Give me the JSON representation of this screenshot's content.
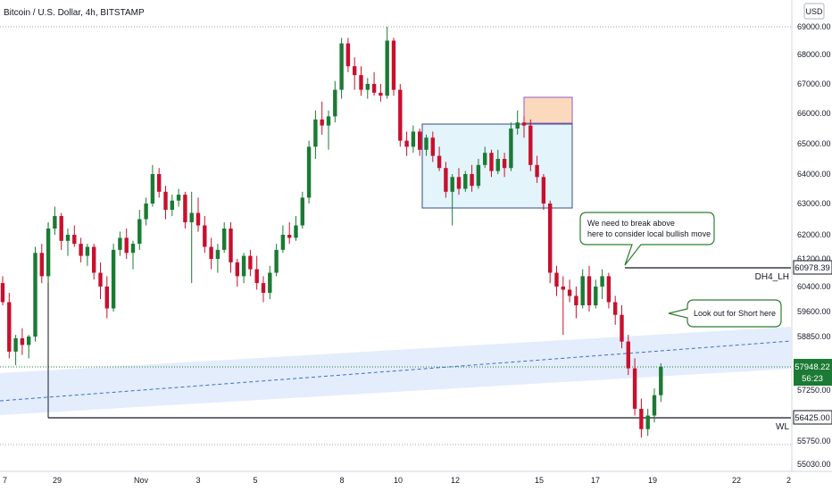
{
  "chart_data": {
    "type": "candlestick",
    "title": "Bitcoin / U.S. Dollar, 4h, BITSTAMP",
    "currency_badge": "USD",
    "y_ticks": [
      "69000.00",
      "68000.00",
      "67000.00",
      "66000.00",
      "65000.00",
      "64000.00",
      "63000.00",
      "62000.00",
      "61200.00",
      "60400.00",
      "59600.00",
      "58850.00",
      "57250.00",
      "55750.00",
      "55030.00"
    ],
    "x_ticks": [
      "7",
      "29",
      "Nov",
      "3",
      "5",
      "8",
      "10",
      "12",
      "15",
      "17",
      "19",
      "22",
      "2"
    ],
    "last_price": "57948.22",
    "countdown": "56:23",
    "levels": [
      {
        "name": "DH4_LH",
        "price": "60978.39",
        "color": "#131722"
      },
      {
        "name": "WL",
        "price": "56425.00",
        "color": "#131722"
      }
    ],
    "annotations": {
      "break_above": "We need to break above\nhere to consider local bullish move",
      "short_here": "Look out for Short here"
    },
    "colors": {
      "up": "#1b7a33",
      "down": "#c8102e",
      "range_box": "#e3f4fb",
      "supply_box": "#fbd9bd",
      "channel": "#dde9fb"
    },
    "grid": false,
    "candles": [
      [
        0,
        60500,
        60700,
        59800,
        59900
      ],
      [
        1,
        59900,
        60200,
        58200,
        58400
      ],
      [
        2,
        58400,
        58900,
        58000,
        58800
      ],
      [
        3,
        58800,
        59100,
        58300,
        58600
      ],
      [
        4,
        58600,
        58900,
        58200,
        58850
      ],
      [
        5,
        58850,
        61600,
        58700,
        61400
      ],
      [
        6,
        61400,
        61700,
        60500,
        60700
      ],
      [
        7,
        60700,
        62400,
        60500,
        62200
      ],
      [
        8,
        62200,
        62900,
        62000,
        62600
      ],
      [
        9,
        62600,
        62700,
        61500,
        61800
      ],
      [
        10,
        61800,
        62200,
        61300,
        62000
      ],
      [
        11,
        62000,
        62300,
        61600,
        61700
      ],
      [
        12,
        61700,
        61900,
        61100,
        61300
      ],
      [
        13,
        61300,
        61700,
        61000,
        61600
      ],
      [
        14,
        61600,
        61700,
        60600,
        60800
      ],
      [
        15,
        60800,
        61100,
        60000,
        60400
      ],
      [
        16,
        60400,
        60700,
        59400,
        59700
      ],
      [
        17,
        59700,
        61700,
        59600,
        61500
      ],
      [
        18,
        61500,
        62100,
        61300,
        61900
      ],
      [
        19,
        61900,
        62200,
        61200,
        61400
      ],
      [
        20,
        61400,
        61800,
        60900,
        61700
      ],
      [
        21,
        61700,
        62800,
        61500,
        62500
      ],
      [
        22,
        62500,
        63200,
        62300,
        63000
      ],
      [
        23,
        63000,
        64300,
        62900,
        64000
      ],
      [
        24,
        64000,
        64200,
        63200,
        63400
      ],
      [
        25,
        63400,
        63600,
        62500,
        62800
      ],
      [
        26,
        62800,
        63300,
        62600,
        63100
      ],
      [
        27,
        63100,
        63500,
        62900,
        63300
      ],
      [
        28,
        63300,
        63400,
        62200,
        62400
      ],
      [
        29,
        62400,
        63400,
        60500,
        62700
      ],
      [
        30,
        62700,
        63200,
        62100,
        62300
      ],
      [
        31,
        62300,
        62600,
        61400,
        61600
      ],
      [
        32,
        61600,
        61900,
        60900,
        61200
      ],
      [
        33,
        61200,
        61700,
        60800,
        61500
      ],
      [
        34,
        61500,
        62400,
        61400,
        62200
      ],
      [
        35,
        62200,
        62400,
        60800,
        61100
      ],
      [
        36,
        61100,
        61200,
        60400,
        60700
      ],
      [
        37,
        60700,
        61400,
        60500,
        61300
      ],
      [
        38,
        61300,
        61500,
        60700,
        60900
      ],
      [
        39,
        60900,
        61300,
        60300,
        60500
      ],
      [
        40,
        60500,
        60700,
        59900,
        60200
      ],
      [
        41,
        60200,
        61000,
        60000,
        60800
      ],
      [
        42,
        60800,
        61700,
        60700,
        61500
      ],
      [
        43,
        61500,
        62300,
        61400,
        62000
      ],
      [
        44,
        62000,
        62400,
        61700,
        61900
      ],
      [
        45,
        61900,
        62600,
        61800,
        62300
      ],
      [
        46,
        62300,
        63400,
        62200,
        63200
      ],
      [
        47,
        63200,
        65100,
        63000,
        64900
      ],
      [
        48,
        64900,
        66100,
        64500,
        65800
      ],
      [
        49,
        65800,
        66400,
        65300,
        65600
      ],
      [
        50,
        65600,
        66100,
        64800,
        65900
      ],
      [
        51,
        65900,
        67100,
        65700,
        66800
      ],
      [
        52,
        66800,
        68600,
        66500,
        68400
      ],
      [
        53,
        68400,
        68600,
        67400,
        67600
      ],
      [
        54,
        67600,
        67900,
        66800,
        67300
      ],
      [
        55,
        67300,
        67600,
        66600,
        66800
      ],
      [
        56,
        66800,
        67200,
        66500,
        67000
      ],
      [
        57,
        67000,
        67400,
        66600,
        66700
      ],
      [
        58,
        66700,
        67000,
        66400,
        66600
      ],
      [
        59,
        66600,
        69000,
        66500,
        68500
      ],
      [
        60,
        68500,
        68600,
        66600,
        66800
      ],
      [
        61,
        66800,
        67000,
        64900,
        65100
      ],
      [
        62,
        65100,
        65400,
        64600,
        64900
      ],
      [
        63,
        64900,
        65600,
        64700,
        65400
      ],
      [
        64,
        65400,
        65500,
        64600,
        64800
      ],
      [
        65,
        64800,
        65300,
        64600,
        65200
      ],
      [
        66,
        65200,
        65400,
        64400,
        64600
      ],
      [
        67,
        64600,
        64900,
        64100,
        64200
      ],
      [
        68,
        64200,
        64400,
        63200,
        63400
      ],
      [
        69,
        63400,
        64000,
        62300,
        63900
      ],
      [
        70,
        63900,
        64200,
        63300,
        63500
      ],
      [
        71,
        63500,
        64100,
        63400,
        64000
      ],
      [
        72,
        64000,
        64300,
        63400,
        63600
      ],
      [
        73,
        63600,
        64500,
        63500,
        64300
      ],
      [
        74,
        64300,
        64900,
        64200,
        64700
      ],
      [
        75,
        64700,
        64800,
        63900,
        64100
      ],
      [
        76,
        64100,
        64800,
        64000,
        64500
      ],
      [
        77,
        64500,
        64700,
        63900,
        64200
      ],
      [
        78,
        64200,
        65700,
        64100,
        65500
      ],
      [
        79,
        65500,
        66100,
        65300,
        65700
      ],
      [
        80,
        65700,
        65900,
        65200,
        65600
      ],
      [
        81,
        65600,
        65800,
        64100,
        64300
      ],
      [
        82,
        64300,
        64600,
        63700,
        63900
      ],
      [
        83,
        63900,
        64000,
        62800,
        63000
      ],
      [
        84,
        63000,
        63100,
        60500,
        60800
      ],
      [
        85,
        60800,
        61000,
        60100,
        60400
      ],
      [
        86,
        60400,
        60700,
        58900,
        60300
      ],
      [
        87,
        60300,
        60600,
        59900,
        60100
      ],
      [
        88,
        60100,
        60400,
        59400,
        59800
      ],
      [
        89,
        59800,
        60900,
        59700,
        60700
      ],
      [
        90,
        60700,
        61000,
        59600,
        59800
      ],
      [
        91,
        59800,
        60600,
        59700,
        60400
      ],
      [
        92,
        60400,
        60900,
        60000,
        60700
      ],
      [
        93,
        60700,
        60800,
        59700,
        59900
      ],
      [
        94,
        59900,
        60100,
        59200,
        59500
      ],
      [
        95,
        59500,
        59800,
        58500,
        58700
      ],
      [
        96,
        58700,
        58900,
        57700,
        57900
      ],
      [
        97,
        57900,
        58200,
        56500,
        56700
      ],
      [
        98,
        56700,
        57000,
        55850,
        56100
      ],
      [
        99,
        56100,
        56700,
        55900,
        56500
      ],
      [
        100,
        56500,
        57300,
        56300,
        57100
      ],
      [
        101,
        57100,
        58050,
        56900,
        57948
      ]
    ]
  }
}
